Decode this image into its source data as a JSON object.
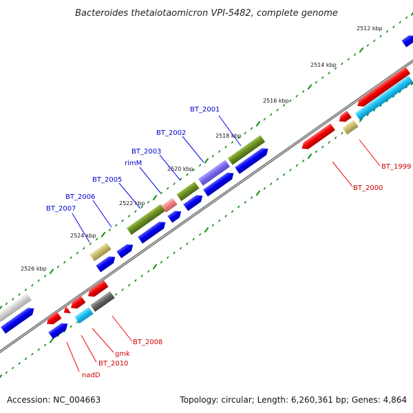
{
  "title": "Bacteroides thetaiotaomicron VPI-5482, complete genome",
  "footer": {
    "accession": "Accession: NC_004663",
    "topology": "Topology: circular; Length: 6,260,361 bp; Genes: 4,864"
  },
  "colors": {
    "forward_label": "#0000cc",
    "reverse_label": "#cc0000",
    "tick": "#008000",
    "backbone": "#808080"
  },
  "ticks": [
    "2512 kbp",
    "2514 kbp",
    "2516 kbp",
    "2518 kbp",
    "2520 kbp",
    "2522 kbp",
    "2524 kbp",
    "2526 kbp"
  ],
  "forward_gene_labels": [
    "BT_2001",
    "BT_2002",
    "BT_2003",
    "rimM",
    "BT_2005",
    "BT_2006",
    "BT_2007"
  ],
  "reverse_gene_labels": [
    "BT_1999",
    "BT_2000",
    "BT_2008",
    "gmk",
    "BT_2010",
    "nadD"
  ]
}
